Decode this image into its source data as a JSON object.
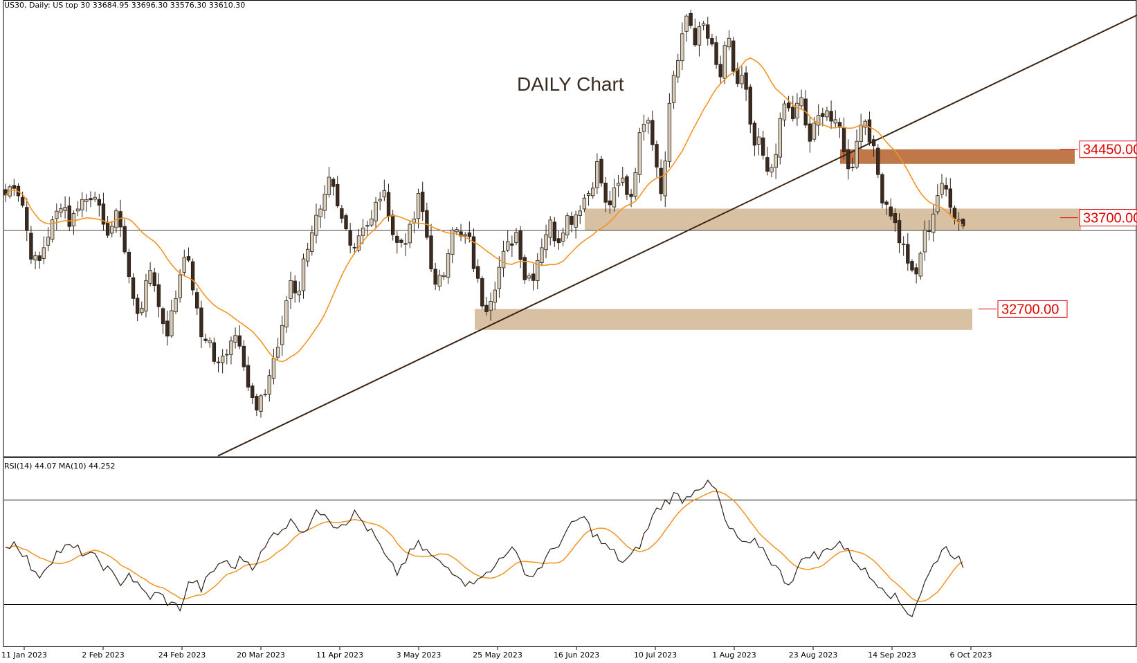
{
  "header": {
    "symbol_info": "US30, Daily:  US top 30  33684.95 33696.30 33576.30 33610.30",
    "rsi_info": "RSI(14) 44.07 MA(10) 44.252"
  },
  "chart_data": [
    {
      "type": "candlestick",
      "title": "DAILY Chart",
      "ylim": [
        31080,
        35980
      ],
      "x_tick_labels": [
        "11 Jan 2023",
        "2 Feb 2023",
        "24 Feb 2023",
        "20 Mar 2023",
        "11 Apr 2023",
        "3 May 2023",
        "25 May 2023",
        "16 Jun 2023",
        "10 Jul 2023",
        "1 Aug 2023",
        "23 Aug 2023",
        "14 Sep 2023",
        "6 Oct 2023"
      ],
      "levels": [
        {
          "label": "34450.00",
          "value": 34450,
          "zone": [
            34290,
            34450
          ],
          "color": "#c0774a"
        },
        {
          "label": "33700.00",
          "value": 33700,
          "zone": [
            33560,
            33800
          ],
          "color": "#d8c0a3"
        },
        {
          "label": "32700.00",
          "value": 32700,
          "zone": [
            32470,
            32700
          ],
          "color": "#d8c0a3"
        }
      ],
      "price_line": 33560,
      "trendline": {
        "from": [
          "17 Mar 2023",
          31090
        ],
        "to": [
          "31 Oct 2023",
          35920
        ]
      },
      "series_anchor_closes": [
        33950,
        34100,
        33900,
        33350,
        33150,
        33480,
        33670,
        33920,
        33610,
        33880,
        33900,
        34010,
        33540,
        33600,
        33750,
        33150,
        32650,
        32800,
        33200,
        32650,
        32450,
        32850,
        33350,
        33000,
        32400,
        32400,
        32030,
        32200,
        32450,
        32350,
        31800,
        31550,
        31800,
        32150,
        32400,
        33050,
        32850,
        33350,
        33650,
        33750,
        34120,
        33750,
        33560,
        33400,
        33640,
        33620,
        33950,
        33900,
        33400,
        33450,
        33560,
        33950,
        33450,
        32900,
        33100,
        33640,
        33460,
        33500,
        33050,
        32700,
        32900,
        33200,
        33400,
        33550,
        33050,
        33080,
        33400,
        33650,
        33440,
        33700,
        33700,
        33880,
        34000,
        34300,
        33800,
        33950,
        34120,
        33900,
        34500,
        34950,
        34400,
        33940,
        35200,
        35450,
        35950,
        35650,
        35800,
        35550,
        35200,
        35680,
        35150,
        35250,
        34480,
        34500,
        34100,
        34500,
        34950,
        34800,
        35000,
        34520,
        34750,
        34950,
        34700,
        34650,
        34120,
        34650,
        34800,
        34400,
        33950,
        33800,
        33500,
        33300,
        32950,
        33450,
        33650,
        34010,
        34000,
        33740,
        33610
      ],
      "rsi": {
        "period": 14,
        "ma_period": 10,
        "last_rsi": 44.07,
        "last_ma": 44.252,
        "ylim": [
          14,
          86
        ],
        "levels": [
          70,
          30
        ],
        "anchors": [
          52,
          54,
          48,
          40,
          45,
          50,
          52,
          51,
          49,
          47,
          43,
          38,
          42,
          36,
          33,
          34,
          30,
          29,
          40,
          36,
          42,
          47,
          44,
          48,
          45,
          50,
          57,
          60,
          62,
          58,
          64,
          66,
          60,
          62,
          65,
          60,
          55,
          47,
          42,
          48,
          53,
          50,
          46,
          44,
          42,
          37,
          42,
          41,
          48,
          52,
          46,
          40,
          45,
          50,
          55,
          60,
          64,
          58,
          53,
          50,
          46,
          49,
          56,
          65,
          69,
          72,
          70,
          75,
          76,
          74,
          60,
          56,
          52,
          54,
          49,
          43,
          38,
          44,
          50,
          48,
          52,
          54,
          49,
          45,
          40,
          38,
          34,
          30,
          26,
          36,
          44,
          52,
          50,
          45
        ]
      }
    }
  ],
  "colors": {
    "candle_up": "#d8cdb9",
    "candle_down": "#3b2a20",
    "ma_line": "#f39422",
    "trendline": "#3b2414",
    "rsi_line": "#2e2018",
    "level_label": "#e00000",
    "title_text": "#3b2a20"
  }
}
